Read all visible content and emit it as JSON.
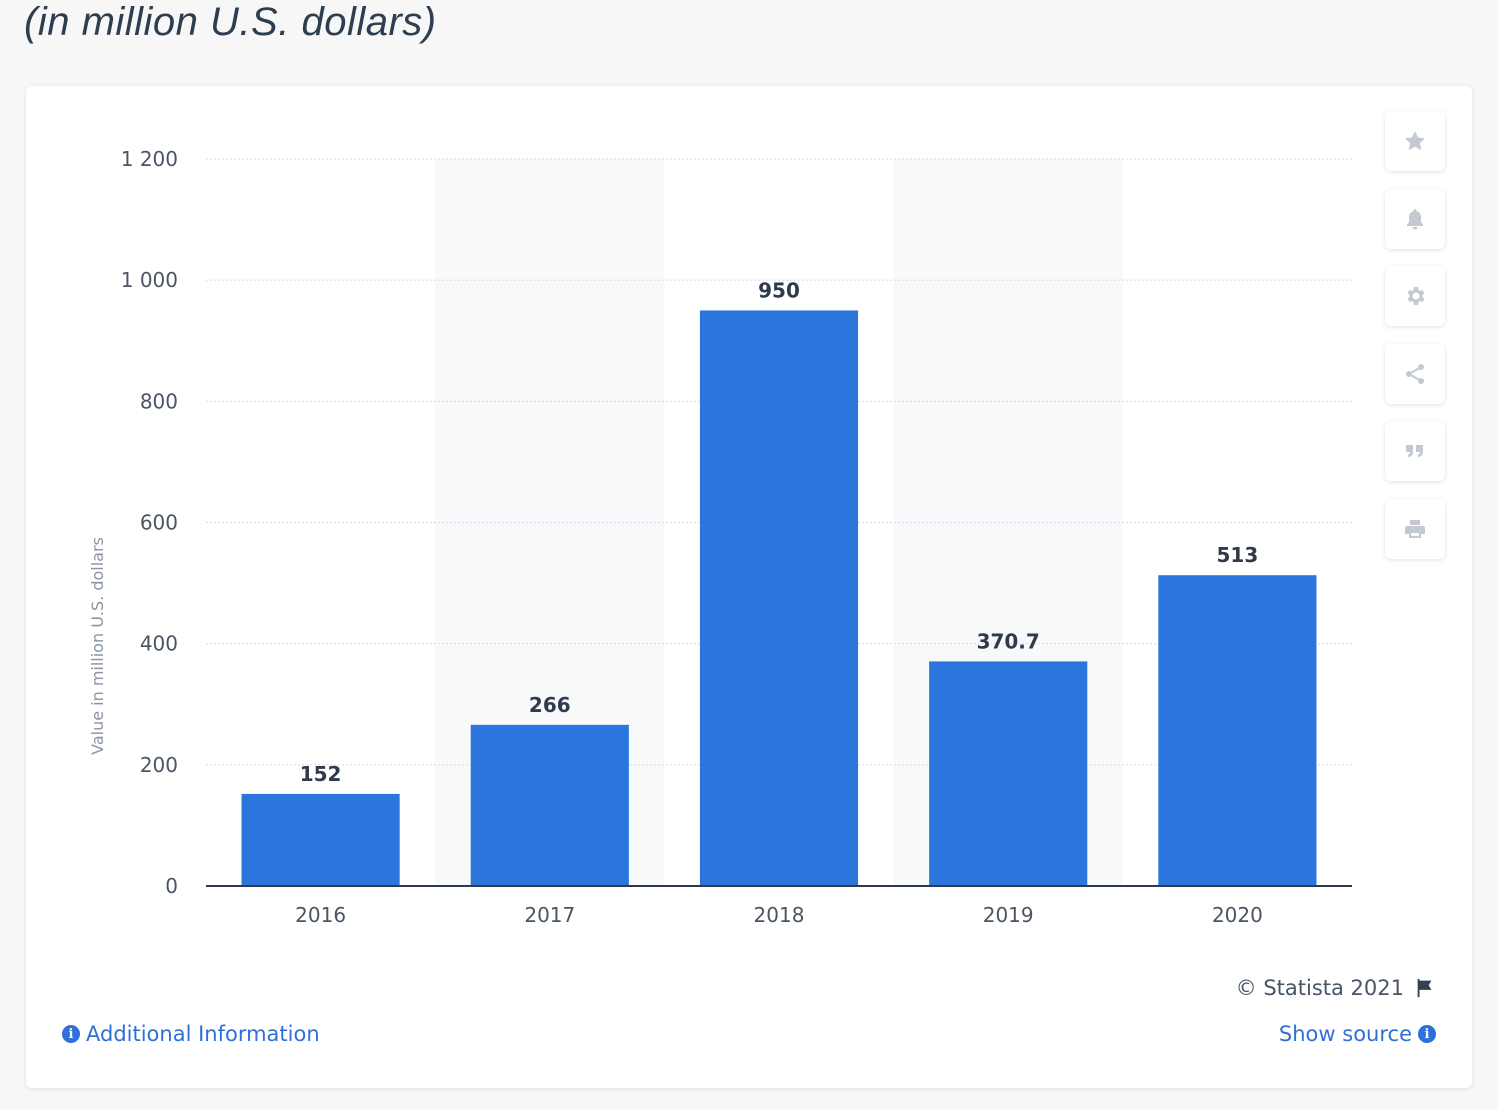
{
  "header": {
    "subtitle": "(in million U.S. dollars)"
  },
  "chart_data": {
    "type": "bar",
    "categories": [
      "2016",
      "2017",
      "2018",
      "2019",
      "2020"
    ],
    "values": [
      152,
      266,
      950,
      370.7,
      513
    ],
    "value_labels": [
      "152",
      "266",
      "950",
      "370.7",
      "513"
    ],
    "ylabel": "Value in million U.S. dollars",
    "xlabel": "",
    "ylim": [
      0,
      1200
    ],
    "yticks": [
      0,
      200,
      400,
      600,
      800,
      1000,
      1200
    ],
    "ytick_labels": [
      "0",
      "200",
      "400",
      "600",
      "800",
      "1 000",
      "1 200"
    ],
    "grid": true,
    "bar_color": "#2a76dd"
  },
  "toolbar": {
    "items": [
      {
        "name": "favorite",
        "icon": "star-icon"
      },
      {
        "name": "notify",
        "icon": "bell-icon"
      },
      {
        "name": "settings",
        "icon": "gear-icon"
      },
      {
        "name": "share",
        "icon": "share-icon"
      },
      {
        "name": "cite",
        "icon": "quote-icon"
      },
      {
        "name": "print",
        "icon": "print-icon"
      }
    ]
  },
  "footer": {
    "copyright": "© Statista 2021",
    "additional_info": "Additional Information",
    "show_source": "Show source"
  }
}
